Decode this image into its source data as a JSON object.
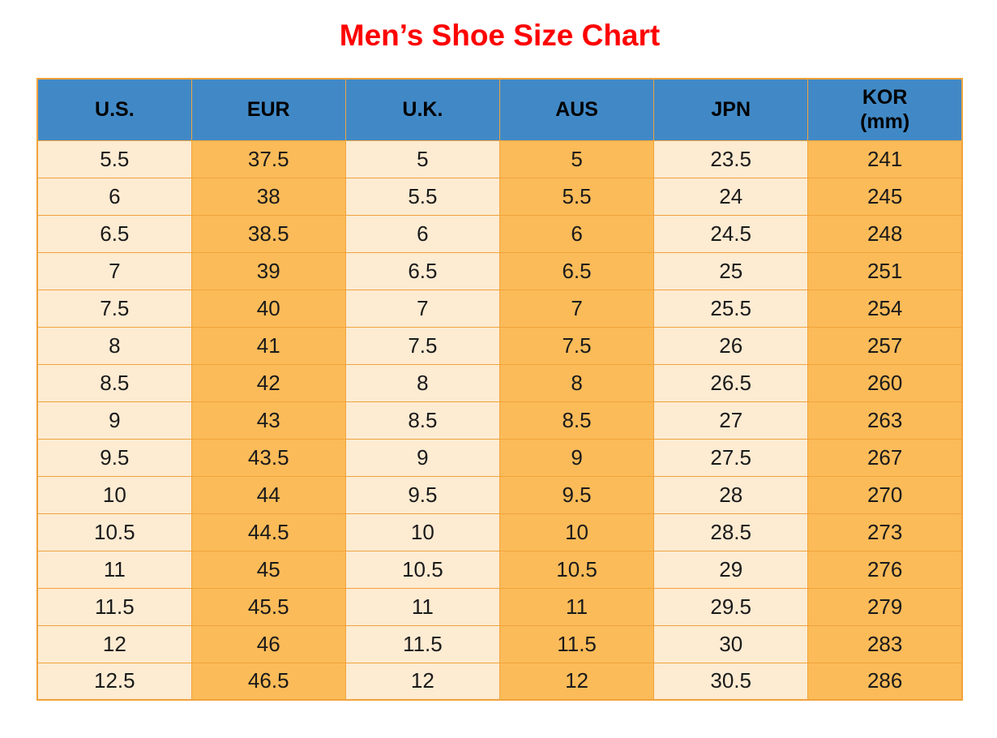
{
  "title": {
    "text": "Men’s Shoe Size Chart"
  },
  "colors": {
    "title": "#fe0000",
    "header_bg": "#4189c6",
    "header_text": "#000000",
    "cell_text": "#1a1a1a",
    "border": "#f1a33c",
    "fill_light": "#fdebd2",
    "fill_dark": "#fbbb59"
  },
  "table": {
    "columns": [
      {
        "key": "us",
        "lines": [
          "U.S."
        ],
        "fill": "light"
      },
      {
        "key": "eur",
        "lines": [
          "EUR"
        ],
        "fill": "dark"
      },
      {
        "key": "uk",
        "lines": [
          "U.K."
        ],
        "fill": "light"
      },
      {
        "key": "aus",
        "lines": [
          "AUS"
        ],
        "fill": "dark"
      },
      {
        "key": "jpn",
        "lines": [
          "JPN"
        ],
        "fill": "light"
      },
      {
        "key": "kor",
        "lines": [
          "KOR",
          "(mm)"
        ],
        "fill": "dark"
      }
    ],
    "rows": [
      [
        "5.5",
        "37.5",
        "5",
        "5",
        "23.5",
        "241"
      ],
      [
        "6",
        "38",
        "5.5",
        "5.5",
        "24",
        "245"
      ],
      [
        "6.5",
        "38.5",
        "6",
        "6",
        "24.5",
        "248"
      ],
      [
        "7",
        "39",
        "6.5",
        "6.5",
        "25",
        "251"
      ],
      [
        "7.5",
        "40",
        "7",
        "7",
        "25.5",
        "254"
      ],
      [
        "8",
        "41",
        "7.5",
        "7.5",
        "26",
        "257"
      ],
      [
        "8.5",
        "42",
        "8",
        "8",
        "26.5",
        "260"
      ],
      [
        "9",
        "43",
        "8.5",
        "8.5",
        "27",
        "263"
      ],
      [
        "9.5",
        "43.5",
        "9",
        "9",
        "27.5",
        "267"
      ],
      [
        "10",
        "44",
        "9.5",
        "9.5",
        "28",
        "270"
      ],
      [
        "10.5",
        "44.5",
        "10",
        "10",
        "28.5",
        "273"
      ],
      [
        "11",
        "45",
        "10.5",
        "10.5",
        "29",
        "276"
      ],
      [
        "11.5",
        "45.5",
        "11",
        "11",
        "29.5",
        "279"
      ],
      [
        "12",
        "46",
        "11.5",
        "11.5",
        "30",
        "283"
      ],
      [
        "12.5",
        "46.5",
        "12",
        "12",
        "30.5",
        "286"
      ]
    ]
  }
}
